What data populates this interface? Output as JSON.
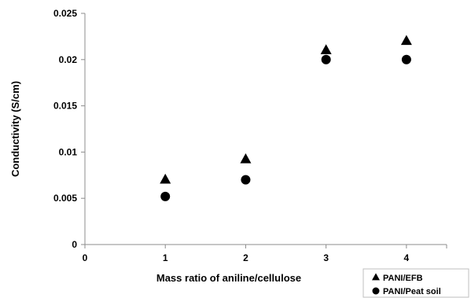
{
  "chart_data": {
    "type": "scatter",
    "title": "",
    "xlabel": "Mass ratio of aniline/cellulose",
    "ylabel": "Conductivity (S/cm)",
    "xlim": [
      0,
      4.5
    ],
    "ylim": [
      0,
      0.025
    ],
    "x_ticks": [
      0,
      1,
      2,
      3,
      4
    ],
    "x_tick_labels": [
      "0",
      "1",
      "2",
      "3",
      "4"
    ],
    "y_ticks": [
      0,
      0.005,
      0.01,
      0.015,
      0.02,
      0.025
    ],
    "y_tick_labels": [
      "0",
      "0.005",
      "0.01",
      "0.015",
      "0.02",
      "0.025"
    ],
    "grid": false,
    "legend_position": "bottom-right",
    "series": [
      {
        "name": "PANI/EFB",
        "marker": "triangle",
        "color": "#000000",
        "x": [
          1,
          2,
          3,
          4
        ],
        "y": [
          0.007,
          0.0092,
          0.021,
          0.022
        ]
      },
      {
        "name": "PANI/Peat soil",
        "marker": "circle",
        "color": "#000000",
        "x": [
          1,
          2,
          3,
          4
        ],
        "y": [
          0.0052,
          0.007,
          0.02,
          0.02
        ]
      }
    ]
  }
}
